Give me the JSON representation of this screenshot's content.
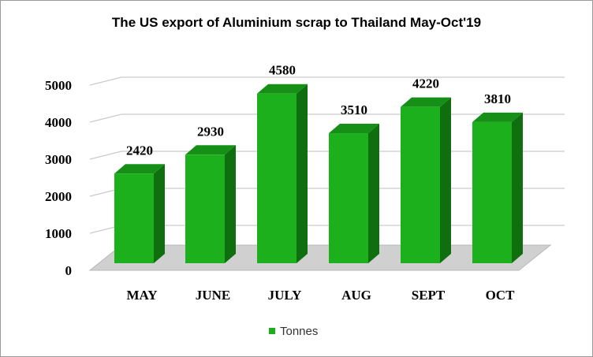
{
  "chart_data": {
    "type": "bar",
    "title": "The US export of Aluminium scrap to Thailand May-Oct'19",
    "categories": [
      "MAY",
      "JUNE",
      "JULY",
      "AUG",
      "SEPT",
      "OCT"
    ],
    "series": [
      {
        "name": "Tonnes",
        "values": [
          2420,
          2930,
          4580,
          3510,
          4220,
          3810
        ]
      }
    ],
    "data_labels": [
      "2420",
      "2930",
      "4580",
      "3510",
      "4220",
      "3810"
    ],
    "yticks": [
      "0",
      "1000",
      "2000",
      "3000",
      "4000",
      "5000"
    ],
    "ylim": [
      0,
      5000
    ],
    "grid": true,
    "style": "3d",
    "legend_position": "bottom",
    "colors": {
      "front": "#1db01d",
      "side": "#0f6f0f",
      "top": "#158f15",
      "grid": "#c9c9c9",
      "floor": "#d0d0d0"
    }
  }
}
